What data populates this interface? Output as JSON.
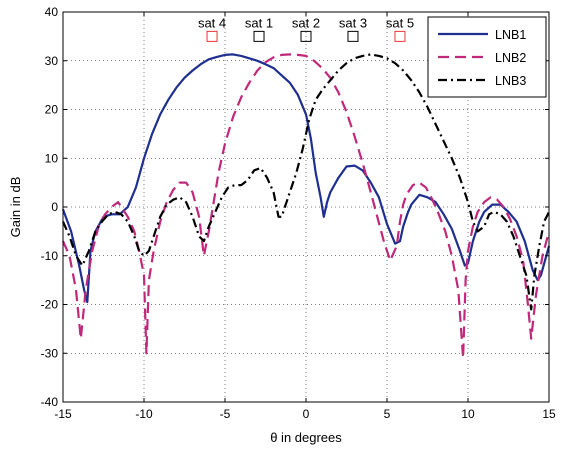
{
  "chart_data": {
    "type": "line",
    "xlabel": "θ in degrees",
    "ylabel": "Gain in dB",
    "xlim": [
      -15,
      15
    ],
    "ylim": [
      -40,
      40
    ],
    "xticks": [
      -15,
      -10,
      -5,
      0,
      5,
      10,
      15
    ],
    "yticks": [
      -40,
      -30,
      -20,
      -10,
      0,
      10,
      20,
      30,
      40
    ],
    "xtick_labels": [
      "-15",
      "-10",
      "-5",
      "0",
      "5",
      "10",
      "15"
    ],
    "ytick_labels": [
      "-40",
      "-30",
      "-20",
      "-10",
      "0",
      "10",
      "20",
      "30",
      "40"
    ],
    "grid": true,
    "legend_position": "top-right",
    "series": [
      {
        "name": "LNB1",
        "color": "#1f2f8f",
        "dash": "solid",
        "x": [
          -15,
          -14.5,
          -14,
          -13.7,
          -13.5,
          -13.3,
          -13,
          -12.5,
          -12,
          -11.5,
          -11,
          -10.5,
          -10,
          -9.5,
          -9,
          -8.5,
          -8,
          -7.5,
          -7,
          -6.5,
          -6,
          -5.5,
          -5,
          -4.5,
          -4,
          -3.5,
          -3,
          -2.5,
          -2,
          -1.5,
          -1,
          -0.5,
          0,
          0.3,
          0.6,
          0.9,
          1.1,
          1.3,
          1.5,
          2,
          2.5,
          3,
          3.5,
          4,
          4.5,
          5,
          5.5,
          5.8,
          6,
          6.3,
          6.5,
          7,
          7.5,
          8,
          8.5,
          9,
          9.5,
          9.8,
          10,
          10.3,
          10.7,
          11,
          11.5,
          12,
          12.5,
          13,
          13.5,
          14,
          14.3,
          14.5,
          15
        ],
        "values": [
          -0.5,
          -5,
          -12,
          -17,
          -19.5,
          -9,
          -5,
          -2,
          -1.5,
          -1.5,
          0,
          4,
          10,
          15,
          19,
          22,
          24.5,
          26.5,
          28,
          29.3,
          30.3,
          30.8,
          31.2,
          31.3,
          31,
          30.5,
          30,
          29.3,
          28.5,
          27,
          25.5,
          23,
          19,
          14,
          7,
          2,
          -2,
          1,
          3,
          6,
          8.3,
          8.5,
          7.5,
          5,
          2,
          -3.5,
          -7.5,
          -7,
          -4,
          -1,
          0.5,
          2.5,
          2,
          1,
          -1.5,
          -4.5,
          -9,
          -12,
          -11.5,
          -7,
          -3,
          -1,
          0.5,
          0.5,
          -1,
          -3,
          -7,
          -13,
          -15,
          -14,
          -8
        ]
      },
      {
        "name": "LNB2",
        "color": "#c0287a",
        "dash": "dashed",
        "x": [
          -15,
          -14.6,
          -14.2,
          -13.9,
          -13.6,
          -13.2,
          -12.8,
          -12.4,
          -12,
          -11.6,
          -11.3,
          -11,
          -10.6,
          -10.3,
          -10,
          -9.85,
          -9.7,
          -9.4,
          -9,
          -8.6,
          -8.2,
          -7.8,
          -7.4,
          -7,
          -6.6,
          -6.3,
          -6,
          -5.7,
          -5.4,
          -5,
          -4.5,
          -4,
          -3.5,
          -3,
          -2.5,
          -2,
          -1.5,
          -1,
          -0.5,
          0,
          0.5,
          1,
          1.5,
          2,
          2.5,
          3,
          3.5,
          4,
          4.4,
          4.8,
          5.2,
          5.6,
          5.8,
          6,
          6.2,
          6.6,
          7,
          7.4,
          7.8,
          8.2,
          8.6,
          9,
          9.4,
          9.7,
          9.85,
          10,
          10.3,
          10.6,
          11,
          11.4,
          11.8,
          12.2,
          12.6,
          13,
          13.4,
          13.7,
          13.9,
          14.2,
          14.6,
          15
        ],
        "values": [
          -7,
          -10,
          -17,
          -27,
          -17,
          -9,
          -4,
          -1.5,
          0,
          1,
          -0.5,
          -2,
          -5,
          -9,
          -14,
          -30,
          -15,
          -9,
          -3,
          1,
          3.5,
          5,
          5,
          3,
          -2,
          -10,
          -5,
          1,
          7,
          13,
          18.5,
          22.5,
          25.5,
          28,
          29.7,
          30.7,
          31.2,
          31.3,
          31.2,
          31,
          30,
          28.5,
          26.5,
          23.5,
          19.5,
          14.5,
          9,
          3,
          -2,
          -7,
          -11,
          -8,
          -3,
          0.5,
          2.5,
          4.5,
          5,
          4,
          1.5,
          -1.5,
          -5,
          -10,
          -17,
          -31,
          -15,
          -9,
          -4,
          -1,
          1,
          2,
          1.5,
          0,
          -2.5,
          -6,
          -11,
          -20,
          -27,
          -18,
          -10,
          -5
        ]
      },
      {
        "name": "LNB3",
        "color": "#000000",
        "dash": "dash-dot",
        "x": [
          -15,
          -14.6,
          -14.2,
          -13.8,
          -13.4,
          -13,
          -12.6,
          -12.2,
          -11.8,
          -11.4,
          -11,
          -10.6,
          -10.3,
          -10,
          -9.7,
          -9.4,
          -9,
          -8.6,
          -8.2,
          -7.8,
          -7.4,
          -7,
          -6.6,
          -6.3,
          -6,
          -5.6,
          -5.2,
          -4.8,
          -4.4,
          -4,
          -3.6,
          -3.2,
          -2.8,
          -2.4,
          -2,
          -1.7,
          -1.5,
          -1.3,
          -1,
          -0.6,
          -0.2,
          0.2,
          0.6,
          1,
          1.5,
          2,
          2.5,
          3,
          3.5,
          4,
          4.5,
          5,
          5.5,
          6,
          6.5,
          7,
          7.5,
          8,
          8.5,
          9,
          9.5,
          10,
          10.3,
          10.6,
          11,
          11.3,
          11.6,
          12,
          12.4,
          12.8,
          13.2,
          13.6,
          13.9,
          14.1,
          14.4,
          14.7,
          15
        ],
        "values": [
          -3,
          -6,
          -10,
          -12,
          -9,
          -5,
          -3,
          -1.5,
          -1,
          -1.5,
          -3,
          -6,
          -9,
          -10,
          -9,
          -6,
          -2,
          0.5,
          1.5,
          2,
          1,
          -2,
          -6,
          -7,
          -4,
          -1,
          2,
          4,
          4.5,
          4.5,
          5.5,
          7.5,
          8,
          6,
          3,
          -2,
          -2,
          0,
          3,
          7,
          12,
          18,
          22,
          24,
          26,
          28,
          29.5,
          30.5,
          31,
          31.3,
          31,
          30.5,
          29.5,
          28,
          26,
          23.5,
          20.5,
          17,
          13.5,
          10,
          6,
          1,
          -3,
          -5,
          -4,
          -1.5,
          -1,
          -1.5,
          -3,
          -6,
          -10,
          -14,
          -21,
          -14,
          -8,
          -3,
          -1
        ]
      }
    ],
    "annotations": [
      {
        "label": "sat 4",
        "x": -5.8,
        "y": 35,
        "marker_color": "#e8363b"
      },
      {
        "label": "sat 1",
        "x": -2.9,
        "y": 35,
        "marker_color": "#000000"
      },
      {
        "label": "sat 2",
        "x": 0,
        "y": 35,
        "marker_color": "#000000"
      },
      {
        "label": "sat 3",
        "x": 2.9,
        "y": 35,
        "marker_color": "#000000"
      },
      {
        "label": "sat 5",
        "x": 5.8,
        "y": 35,
        "marker_color": "#e8363b"
      }
    ]
  }
}
